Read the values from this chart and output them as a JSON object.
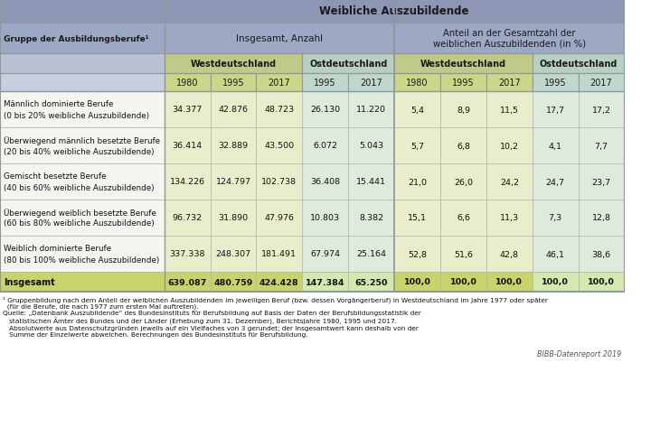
{
  "title": "Weibliche Auszubildende",
  "col_group1_label": "Insgesamt, Anzahl",
  "col_group2_label": "Anteil an der Gesamtzahl der\nweiblichen Auszubildenden (in %)",
  "left_header_label": "Gruppe der Ausbildungsberufe¹",
  "col_years": [
    "1980",
    "1995",
    "2017",
    "1995",
    "2017",
    "1980",
    "1995",
    "2017",
    "1995",
    "2017"
  ],
  "row_labels_line1": [
    "Männlich dominierte Berufe",
    "Überwiegend männlich besetzte Berufe",
    "Gemischt besetzte Berufe",
    "Überwiegend weiblich besetzte Berufe",
    "Weiblich dominierte Berufe",
    "Insgesamt"
  ],
  "row_labels_line2": [
    "(0 bis 20% weibliche Auszubildende)",
    "(20 bis 40% weibliche Auszubildende)",
    "(40 bis 60% weibliche Auszubildende)",
    "(60 bis 80% weibliche Auszubildende)",
    "(80 bis 100% weibliche Auszubildende)",
    ""
  ],
  "data": [
    [
      "34.377",
      "42.876",
      "48.723",
      "26.130",
      "11.220",
      "5,4",
      "8,9",
      "11,5",
      "17,7",
      "17,2"
    ],
    [
      "36.414",
      "32.889",
      "43.500",
      "6.072",
      "5.043",
      "5,7",
      "6,8",
      "10,2",
      "4,1",
      "7,7"
    ],
    [
      "134.226",
      "124.797",
      "102.738",
      "36.408",
      "15.441",
      "21,0",
      "26,0",
      "24,2",
      "24,7",
      "23,7"
    ],
    [
      "96.732",
      "31.890",
      "47.976",
      "10.803",
      "8.382",
      "15,1",
      "6,6",
      "11,3",
      "7,3",
      "12,8"
    ],
    [
      "337.338",
      "248.307",
      "181.491",
      "67.974",
      "25.164",
      "52,8",
      "51,6",
      "42,8",
      "46,1",
      "38,6"
    ],
    [
      "639.087",
      "480.759",
      "424.428",
      "147.384",
      "65.250",
      "100,0",
      "100,0",
      "100,0",
      "100,0",
      "100,0"
    ]
  ],
  "hdr1_bg": "#8d97b5",
  "hdr2_bg": "#9da8c4",
  "hdr3_bg": "#b8c2d4",
  "hdr4_bg": "#c8d0e0",
  "west_subhdr_bg": "#c0ca88",
  "ost_subhdr_bg": "#b8d0c0",
  "west_year_bg": "#ccd688",
  "ost_year_bg": "#c0d8cc",
  "data_west_bg": "#eaedcc",
  "data_ost_bg": "#ddeadc",
  "total_west_bg": "#c8d46a",
  "total_ost_bg": "#d4e8b0",
  "border_col": "#909898",
  "inner_col": "#aab8b0",
  "branding": "BIBB-Datenreport 2019"
}
